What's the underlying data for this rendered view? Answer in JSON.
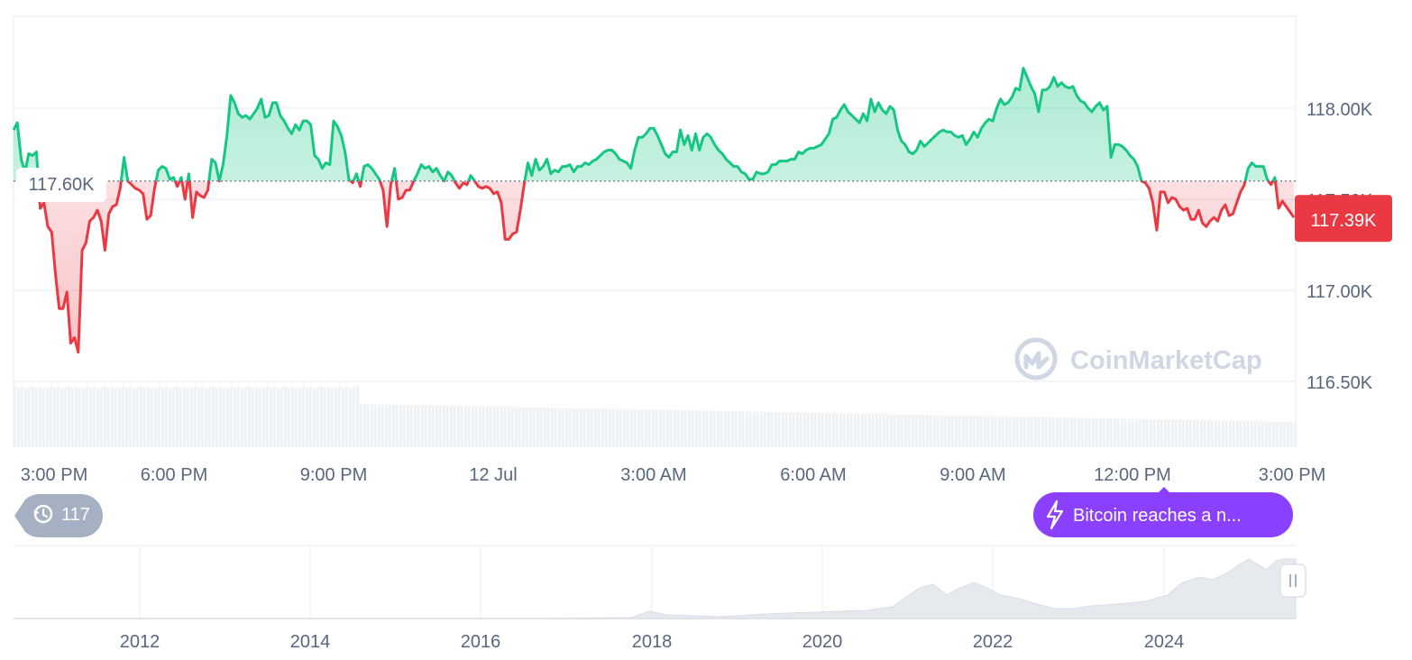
{
  "chart_data": {
    "type": "line",
    "title": "",
    "xlabel": "",
    "ylabel": "",
    "ylim": [
      116200,
      118400
    ],
    "y_ticks": [
      "118.00K",
      "117.50K",
      "117.00K",
      "116.50K"
    ],
    "x_ticks": [
      "3:00 PM",
      "6:00 PM",
      "9:00 PM",
      "12 Jul",
      "3:00 AM",
      "6:00 AM",
      "9:00 AM",
      "12:00 PM",
      "3:00 PM"
    ],
    "reference_price": 117600,
    "reference_label": "117.60K",
    "current_price": 117390,
    "current_label": "117.39K",
    "colors": {
      "up": "#16c784",
      "down": "#ea3943",
      "grid": "#eff2f5",
      "volume": "#eff2f5"
    },
    "series": [
      {
        "values": [
          117880,
          117920,
          117720,
          117650,
          117750,
          117740,
          117760,
          117450,
          117480,
          117350,
          117320,
          117090,
          116900,
          116900,
          116990,
          116710,
          116740,
          116660,
          117220,
          117260,
          117380,
          117400,
          117440,
          117380,
          117220,
          117420,
          117460,
          117470,
          117560,
          117730,
          117600,
          117580,
          117560,
          117550,
          117530,
          117390,
          117410,
          117560,
          117660,
          117680,
          117670,
          117610,
          117620,
          117570,
          117620,
          117500,
          117640,
          117400,
          117540,
          117520,
          117510,
          117550,
          117720,
          117700,
          117600,
          117690,
          117850,
          118070,
          118030,
          117970,
          117950,
          117960,
          117940,
          117970,
          118000,
          118050,
          117950,
          117960,
          118030,
          118030,
          117960,
          117930,
          117890,
          117860,
          117910,
          117880,
          117930,
          117930,
          117910,
          117740,
          117720,
          117670,
          117700,
          117690,
          117930,
          117900,
          117850,
          117760,
          117610,
          117590,
          117640,
          117570,
          117680,
          117690,
          117670,
          117640,
          117610,
          117550,
          117350,
          117580,
          117670,
          117500,
          117510,
          117550,
          117550,
          117600,
          117640,
          117690,
          117670,
          117680,
          117650,
          117670,
          117630,
          117600,
          117650,
          117630,
          117590,
          117560,
          117590,
          117580,
          117630,
          117600,
          117570,
          117560,
          117570,
          117560,
          117530,
          117540,
          117480,
          117280,
          117280,
          117310,
          117320,
          117440,
          117580,
          117700,
          117630,
          117720,
          117660,
          117680,
          117720,
          117640,
          117660,
          117650,
          117680,
          117680,
          117690,
          117650,
          117680,
          117680,
          117700,
          117690,
          117710,
          117720,
          117740,
          117760,
          117770,
          117770,
          117750,
          117720,
          117710,
          117700,
          117670,
          117770,
          117840,
          117840,
          117860,
          117890,
          117890,
          117850,
          117800,
          117750,
          117730,
          117760,
          117760,
          117880,
          117800,
          117850,
          117770,
          117860,
          117770,
          117840,
          117860,
          117840,
          117800,
          117770,
          117750,
          117720,
          117700,
          117680,
          117680,
          117650,
          117640,
          117610,
          117610,
          117650,
          117640,
          117640,
          117650,
          117690,
          117690,
          117710,
          117710,
          117710,
          117720,
          117720,
          117760,
          117750,
          117770,
          117780,
          117780,
          117790,
          117800,
          117830,
          117860,
          117940,
          117950,
          117990,
          118020,
          117980,
          117960,
          117940,
          117920,
          117970,
          117930,
          118050,
          117980,
          118030,
          117990,
          117970,
          118010,
          117990,
          117880,
          117820,
          117800,
          117760,
          117750,
          117770,
          117820,
          117790,
          117810,
          117830,
          117850,
          117870,
          117880,
          117870,
          117870,
          117850,
          117840,
          117850,
          117800,
          117830,
          117870,
          117840,
          117890,
          117920,
          117940,
          117930,
          118000,
          118050,
          118020,
          118030,
          118060,
          118110,
          118100,
          118220,
          118170,
          118120,
          118080,
          117980,
          118100,
          118100,
          118120,
          118170,
          118120,
          118140,
          118120,
          118110,
          118120,
          118070,
          118040,
          118030,
          118000,
          117980,
          118010,
          118030,
          117990,
          118010,
          117730,
          117800,
          117800,
          117790,
          117770,
          117740,
          117720,
          117680,
          117600,
          117590,
          117560,
          117480,
          117330,
          117540,
          117540,
          117480,
          117510,
          117500,
          117460,
          117440,
          117450,
          117390,
          117390,
          117440,
          117370,
          117350,
          117380,
          117400,
          117380,
          117440,
          117470,
          117410,
          117420,
          117480,
          117540,
          117580,
          117670,
          117700,
          117680,
          117680,
          117680,
          117610,
          117580,
          117620,
          117450,
          117490,
          117460,
          117430,
          117400
        ]
      }
    ],
    "navigator": {
      "x_ticks": [
        "2012",
        "2014",
        "2016",
        "2018",
        "2020",
        "2022",
        "2024"
      ]
    }
  },
  "annotations": {
    "watermark": "CoinMarketCap",
    "history_count": "117",
    "news_headline": "Bitcoin reaches a n..."
  }
}
